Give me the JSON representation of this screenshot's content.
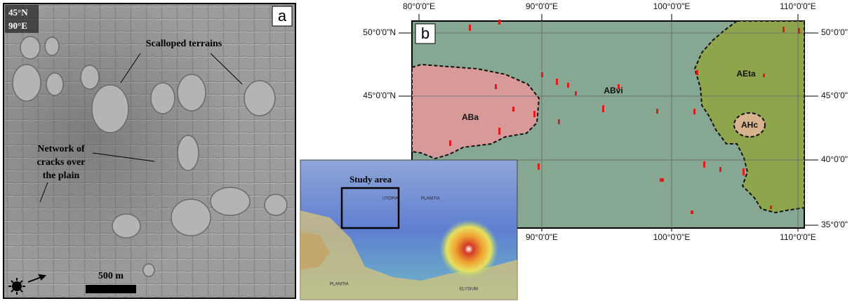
{
  "panel_a": {
    "lat_label": "45°N",
    "lon_label": "90°E",
    "letter": "a",
    "annotations": [
      "Scalloped terrains",
      "Network of",
      "cracks over",
      "the plain"
    ],
    "scale_bar": "500 m"
  },
  "panel_b": {
    "letter": "b",
    "top_lon_labels": [
      "80°0'0\"E",
      "90°0'0\"E",
      "100°0'0\"E",
      "110°0'0\"E"
    ],
    "bottom_lon_labels": [
      "90°0'0\"E",
      "100°0'0\"E",
      "110°0'0\"E"
    ],
    "left_lat_labels": [
      "50°0'0\"N",
      "45°0'0\"N"
    ],
    "right_lat_labels": [
      "50°0'0\"",
      "45°0'0\"",
      "40°0'0\"",
      "35°0'0\""
    ],
    "units": [
      "ABa",
      "ABvi",
      "AEta",
      "AHc"
    ]
  },
  "inset": {
    "label": "Study area",
    "place_names": [
      "UTOPIA",
      "PLANITIA",
      "ELYSIUM",
      "PLANITIA"
    ]
  }
}
